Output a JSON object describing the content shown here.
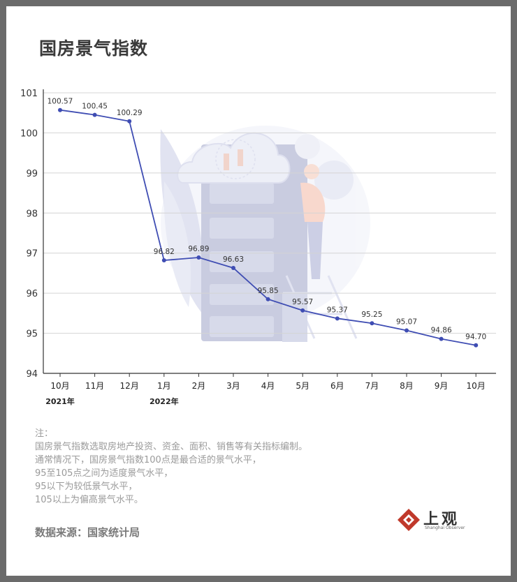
{
  "title": "国房景气指数",
  "chart_data": {
    "type": "line",
    "categories": [
      "10月",
      "11月",
      "12月",
      "1月",
      "2月",
      "3月",
      "4月",
      "5月",
      "6月",
      "7月",
      "8月",
      "9月",
      "10月"
    ],
    "year_labels": [
      {
        "index": 0,
        "label": "2021年"
      },
      {
        "index": 3,
        "label": "2022年"
      }
    ],
    "values": [
      100.57,
      100.45,
      100.29,
      96.82,
      96.89,
      96.63,
      95.85,
      95.57,
      95.37,
      95.25,
      95.07,
      94.86,
      94.7
    ],
    "data_labels": [
      "100.57",
      "100.45",
      "100.29",
      "96.82",
      "96.89",
      "96.63",
      "95.85",
      "95.57",
      "95.37",
      "95.25",
      "95.07",
      "94.86",
      "94.70"
    ],
    "y_ticks": [
      94,
      95,
      96,
      97,
      98,
      99,
      100,
      101
    ],
    "ylim": [
      94,
      101
    ],
    "grid": true,
    "line_color": "#3f4db3"
  },
  "notes": [
    "注：",
    "国房景气指数选取房地产投资、资金、面积、销售等有关指标编制。",
    "通常情况下，国房景气指数100点是最合适的景气水平，",
    "95至105点之间为适度景气水平，",
    "95以下为较低景气水平，",
    "105以上为偏高景气水平。"
  ],
  "source": "数据来源：国家统计局",
  "logo": {
    "text": "上观",
    "subtitle": "Shanghai Observer"
  }
}
